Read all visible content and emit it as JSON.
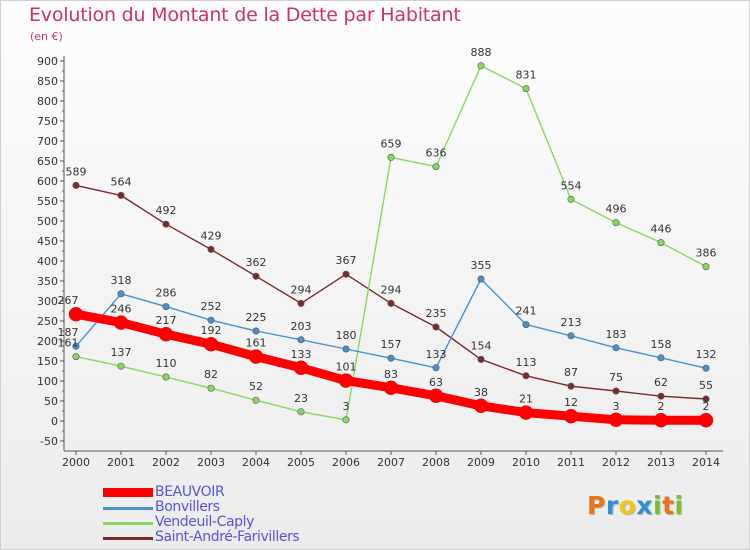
{
  "header": {
    "title": "Evolution du Montant de la Dette par Habitant",
    "subtitle": "(en €)"
  },
  "logo": {
    "text": "Proxiti",
    "letters": [
      "P",
      "r",
      "o",
      "x",
      "i",
      "t",
      "i"
    ],
    "colors": [
      "#e8731c",
      "#2f8fd6",
      "#f2c418",
      "#2f8fd6",
      "#7bbf2a",
      "#e8731c",
      "#7bbf2a"
    ]
  },
  "chart_data": {
    "type": "line",
    "title": "Evolution du Montant de la Dette par Habitant",
    "subtitle": "(en €)",
    "x": [
      "2000",
      "2001",
      "2002",
      "2003",
      "2004",
      "2005",
      "2006",
      "2007",
      "2008",
      "2009",
      "2010",
      "2011",
      "2012",
      "2013",
      "2014"
    ],
    "ylim": [
      -50,
      900
    ],
    "yticks": [
      -50,
      0,
      50,
      100,
      150,
      200,
      250,
      300,
      350,
      400,
      450,
      500,
      550,
      600,
      650,
      700,
      750,
      800,
      850,
      900
    ],
    "grid": false,
    "legend_position": "bottom-left",
    "series": [
      {
        "name": "BEAUVOIR",
        "color": "#ff0000",
        "values": [
          267,
          246,
          217,
          192,
          161,
          133,
          101,
          83,
          63,
          38,
          21,
          12,
          3,
          2,
          2
        ],
        "labels": [
          "267",
          "246",
          "217",
          "192",
          "161",
          "133",
          "101",
          "83",
          "63",
          "38",
          "21",
          "12",
          "3",
          "2",
          "2"
        ],
        "gaps": []
      },
      {
        "name": "Bonvillers",
        "color": "#4a8fd0",
        "values": [
          187,
          318,
          286,
          252,
          225,
          203,
          180,
          157,
          133,
          355,
          241,
          213,
          183,
          158,
          132
        ],
        "labels": [
          "187",
          "318",
          "286",
          "252",
          "225",
          "203",
          "180",
          "157",
          "133",
          "355",
          "241",
          "213",
          "183",
          "158",
          "132"
        ],
        "gaps": []
      },
      {
        "name": "Vendeuil-Caply",
        "color": "#88d860",
        "values": [
          161,
          137,
          110,
          82,
          52,
          23,
          3,
          659,
          636,
          888,
          831,
          554,
          496,
          446,
          386
        ],
        "labels": [
          "161",
          "137",
          "110",
          "82",
          "52",
          "23",
          "3",
          "659",
          "636",
          "888",
          "831",
          "554",
          "496",
          "446",
          "386"
        ],
        "gaps": []
      },
      {
        "name": "Saint-André-Farivillers",
        "color": "#7a2a2a",
        "values": [
          589,
          564,
          492,
          429,
          362,
          294,
          367,
          294,
          235,
          154,
          113,
          87,
          75,
          62,
          55
        ],
        "labels": [
          "589",
          "564",
          "492",
          "429",
          "362",
          "294",
          "367",
          "294",
          "235",
          "154",
          "113",
          "87",
          "75",
          "62",
          "55"
        ],
        "gaps": []
      }
    ]
  },
  "legend": {
    "items": [
      {
        "name": "BEAUVOIR",
        "color": "#ff0000"
      },
      {
        "name": "Bonvillers",
        "color": "#4a8fd0"
      },
      {
        "name": "Vendeuil-Caply",
        "color": "#88d860"
      },
      {
        "name": "Saint-André-Farivillers",
        "color": "#7a2a2a"
      }
    ]
  }
}
